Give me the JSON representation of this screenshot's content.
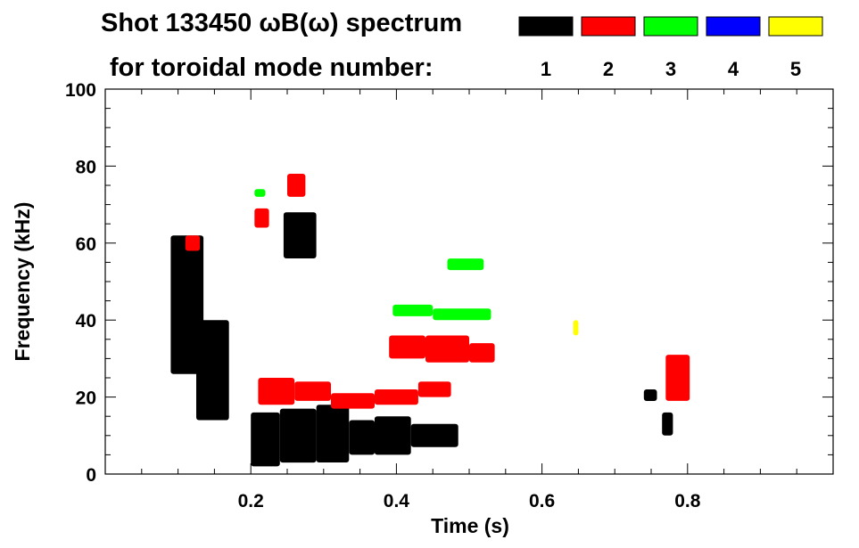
{
  "chart_data": {
    "type": "heatmap",
    "title_line1": "Shot 133450 ωB(ω) spectrum",
    "title_line2": "for toroidal mode number:",
    "xlabel": "Time (s)",
    "ylabel": "Frequency (kHz)",
    "xlim": [
      0.0,
      1.0
    ],
    "ylim": [
      0,
      100
    ],
    "x_ticks": [
      {
        "value": 0.2,
        "label": "0.2"
      },
      {
        "value": 0.4,
        "label": "0.4"
      },
      {
        "value": 0.6,
        "label": "0.6"
      },
      {
        "value": 0.8,
        "label": "0.8"
      }
    ],
    "y_ticks": [
      {
        "value": 0,
        "label": "0"
      },
      {
        "value": 20,
        "label": "20"
      },
      {
        "value": 40,
        "label": "40"
      },
      {
        "value": 60,
        "label": "60"
      },
      {
        "value": 80,
        "label": "80"
      },
      {
        "value": 100,
        "label": "100"
      }
    ],
    "grid": false,
    "legend": {
      "placement": "top-right",
      "entries": [
        {
          "label": "1",
          "color": "#000000"
        },
        {
          "label": "2",
          "color": "#ff0000"
        },
        {
          "label": "3",
          "color": "#00ff00"
        },
        {
          "label": "4",
          "color": "#0000ff"
        },
        {
          "label": "5",
          "color": "#ffff00"
        }
      ]
    },
    "regions": [
      {
        "mode": 1,
        "t0": 0.09,
        "t1": 0.135,
        "f0": 26,
        "f1": 62
      },
      {
        "mode": 1,
        "t0": 0.125,
        "t1": 0.17,
        "f0": 14,
        "f1": 40
      },
      {
        "mode": 1,
        "t0": 0.2,
        "t1": 0.24,
        "f0": 2,
        "f1": 16
      },
      {
        "mode": 1,
        "t0": 0.24,
        "t1": 0.29,
        "f0": 3,
        "f1": 17
      },
      {
        "mode": 1,
        "t0": 0.29,
        "t1": 0.335,
        "f0": 3,
        "f1": 18
      },
      {
        "mode": 1,
        "t0": 0.335,
        "t1": 0.37,
        "f0": 5,
        "f1": 14
      },
      {
        "mode": 1,
        "t0": 0.37,
        "t1": 0.42,
        "f0": 5,
        "f1": 15
      },
      {
        "mode": 1,
        "t0": 0.42,
        "t1": 0.485,
        "f0": 7,
        "f1": 13
      },
      {
        "mode": 1,
        "t0": 0.245,
        "t1": 0.29,
        "f0": 56,
        "f1": 68
      },
      {
        "mode": 1,
        "t0": 0.765,
        "t1": 0.78,
        "f0": 10,
        "f1": 16
      },
      {
        "mode": 1,
        "t0": 0.74,
        "t1": 0.758,
        "f0": 19,
        "f1": 22
      },
      {
        "mode": 2,
        "t0": 0.21,
        "t1": 0.26,
        "f0": 18,
        "f1": 25
      },
      {
        "mode": 2,
        "t0": 0.26,
        "t1": 0.31,
        "f0": 19,
        "f1": 24
      },
      {
        "mode": 2,
        "t0": 0.31,
        "t1": 0.37,
        "f0": 17,
        "f1": 21
      },
      {
        "mode": 2,
        "t0": 0.37,
        "t1": 0.43,
        "f0": 18,
        "f1": 22
      },
      {
        "mode": 2,
        "t0": 0.43,
        "t1": 0.475,
        "f0": 20,
        "f1": 24
      },
      {
        "mode": 2,
        "t0": 0.39,
        "t1": 0.44,
        "f0": 30,
        "f1": 36
      },
      {
        "mode": 2,
        "t0": 0.44,
        "t1": 0.5,
        "f0": 29,
        "f1": 36
      },
      {
        "mode": 2,
        "t0": 0.5,
        "t1": 0.535,
        "f0": 29,
        "f1": 34
      },
      {
        "mode": 2,
        "t0": 0.77,
        "t1": 0.803,
        "f0": 19,
        "f1": 31
      },
      {
        "mode": 2,
        "t0": 0.25,
        "t1": 0.275,
        "f0": 72,
        "f1": 78
      },
      {
        "mode": 2,
        "t0": 0.205,
        "t1": 0.225,
        "f0": 64,
        "f1": 69
      },
      {
        "mode": 2,
        "t0": 0.11,
        "t1": 0.13,
        "f0": 58,
        "f1": 62
      },
      {
        "mode": 3,
        "t0": 0.395,
        "t1": 0.45,
        "f0": 41,
        "f1": 44
      },
      {
        "mode": 3,
        "t0": 0.45,
        "t1": 0.53,
        "f0": 40,
        "f1": 43
      },
      {
        "mode": 3,
        "t0": 0.47,
        "t1": 0.52,
        "f0": 53,
        "f1": 56
      },
      {
        "mode": 3,
        "t0": 0.205,
        "t1": 0.22,
        "f0": 72,
        "f1": 74
      },
      {
        "mode": 5,
        "t0": 0.643,
        "t1": 0.65,
        "f0": 36,
        "f1": 40
      }
    ]
  }
}
